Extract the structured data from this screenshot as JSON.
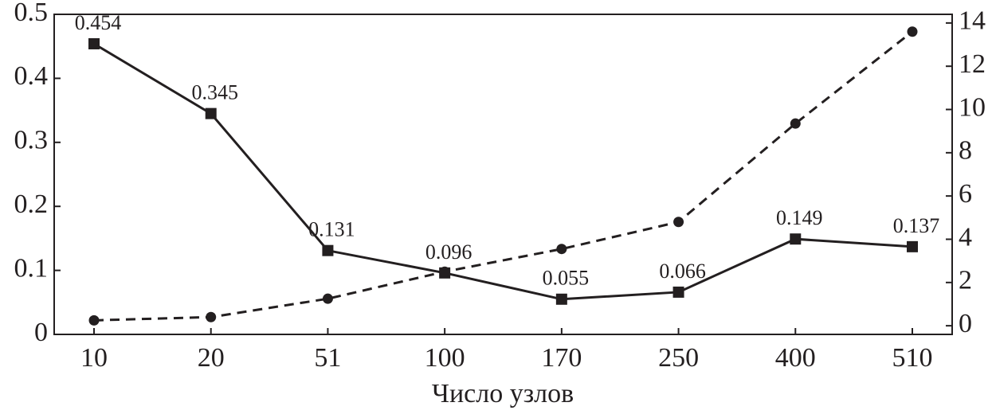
{
  "chart_data": {
    "type": "line",
    "x_label": "Число узлов",
    "categories": [
      "10",
      "20",
      "51",
      "100",
      "170",
      "250",
      "400",
      "510"
    ],
    "series": [
      {
        "color": "#231f20",
        "marker": "square",
        "linestyle": "solid",
        "axis": "y",
        "data_labels": true,
        "values": [
          0.454,
          0.345,
          0.131,
          0.096,
          0.055,
          0.066,
          0.149,
          0.137
        ]
      },
      {
        "color": "#231f20",
        "marker": "circle",
        "linestyle": "dashed",
        "axis": "y2",
        "data_labels": false,
        "values": [
          0.25,
          0.4,
          1.25,
          2.5,
          3.55,
          4.8,
          9.35,
          13.6
        ]
      }
    ],
    "ylim": [
      0,
      0.5
    ],
    "yticks": [
      0,
      0.1,
      0.2,
      0.3,
      0.4,
      0.5
    ],
    "y2lim": [
      -0.4,
      14.4
    ],
    "y2ticks": [
      0,
      2,
      4,
      6,
      8,
      10,
      12,
      14
    ],
    "grid": false
  }
}
